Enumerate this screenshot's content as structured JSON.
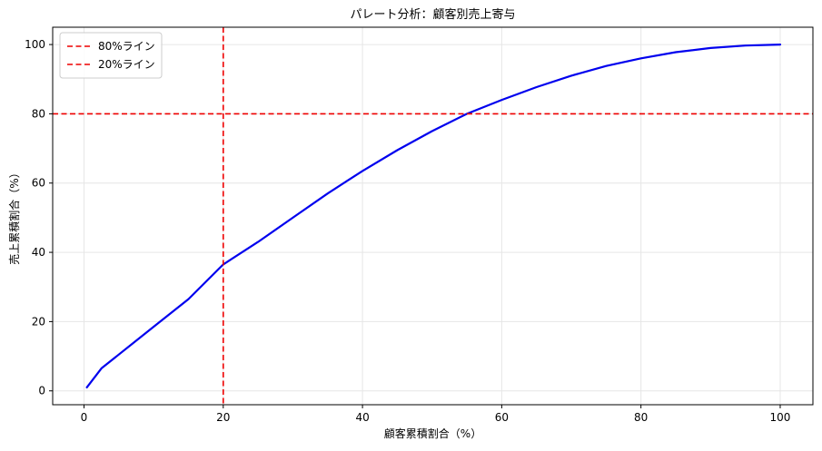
{
  "chart_data": {
    "type": "line",
    "title": "パレート分析：顧客別売上寄与",
    "xlabel": "顧客累積割合（%）",
    "ylabel": "売上累積割合（%）",
    "xlim": [
      -4.5,
      104.7
    ],
    "ylim": [
      -4,
      105
    ],
    "xticks": [
      0,
      20,
      40,
      60,
      80,
      100
    ],
    "yticks": [
      0,
      20,
      40,
      60,
      80,
      100
    ],
    "grid": true,
    "legend_position": "top-left",
    "series": [
      {
        "name": "",
        "color": "#0000ee",
        "x": [
          0.4,
          2.5,
          5,
          10,
          15,
          20,
          25,
          30,
          35,
          40,
          45,
          50,
          55,
          60,
          65,
          70,
          75,
          80,
          85,
          90,
          95,
          100
        ],
        "y": [
          1,
          6.5,
          10.5,
          18.5,
          26.5,
          36.5,
          43,
          50,
          57,
          63.5,
          69.5,
          75,
          80,
          84,
          87.7,
          91,
          93.8,
          96,
          97.8,
          99,
          99.7,
          100
        ]
      }
    ],
    "reference_lines": [
      {
        "name": "80%ライン",
        "orientation": "horizontal",
        "value": 80,
        "color": "#ee0000",
        "style": "dashed"
      },
      {
        "name": "20%ライン",
        "orientation": "vertical",
        "value": 20,
        "color": "#ee0000",
        "style": "dashed"
      }
    ]
  }
}
